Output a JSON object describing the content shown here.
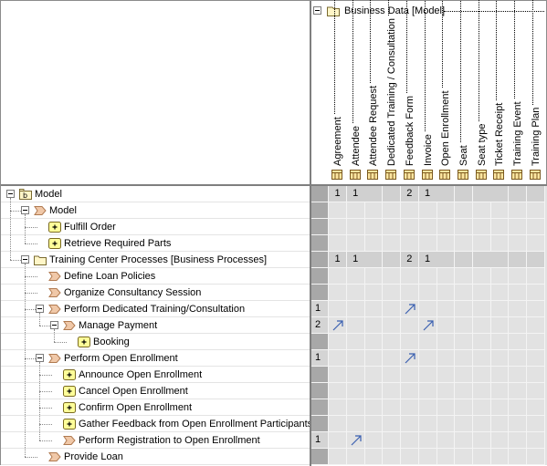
{
  "group_header": {
    "label": "Business Data [Model]"
  },
  "columns": [
    "Agreement",
    "Attendee",
    "Attendee Request",
    "Dedicated Training / Consultation",
    "Feedback Form",
    "Invoice",
    "Open Enrollment",
    "Seat",
    "Seat type",
    "Ticket Receipt",
    "Training Event",
    "Training Plan"
  ],
  "rows": [
    {
      "label": "Model",
      "level": 0,
      "icon": "package-icon",
      "expander": true,
      "rowsum": "",
      "cells": [
        "1",
        "1",
        "",
        "",
        "2",
        "1",
        "",
        "",
        "",
        "",
        "",
        ""
      ],
      "summary": true
    },
    {
      "label": "Model",
      "level": 1,
      "icon": "process-icon",
      "expander": true,
      "rowsum": "",
      "cells": [],
      "summary": false
    },
    {
      "label": "Fulfill Order",
      "level": 2,
      "icon": "activity-icon",
      "expander": false,
      "rowsum": "",
      "cells": [],
      "summary": false
    },
    {
      "label": "Retrieve Required Parts",
      "level": 2,
      "icon": "activity-icon",
      "expander": false,
      "rowsum": "",
      "cells": [],
      "summary": false
    },
    {
      "label": "Training Center Processes [Business Processes]",
      "level": 1,
      "icon": "folder-icon",
      "expander": true,
      "rowsum": "",
      "cells": [
        "1",
        "1",
        "",
        "",
        "2",
        "1",
        "",
        "",
        "",
        "",
        "",
        ""
      ],
      "summary": true
    },
    {
      "label": "Define Loan Policies",
      "level": 2,
      "icon": "process-icon",
      "expander": false,
      "rowsum": "",
      "cells": [],
      "summary": false
    },
    {
      "label": "Organize Consultancy Session",
      "level": 2,
      "icon": "process-icon",
      "expander": false,
      "rowsum": "",
      "cells": [],
      "summary": false
    },
    {
      "label": "Perform Dedicated Training/Consultation",
      "level": 2,
      "icon": "process-icon",
      "expander": true,
      "rowsum": "1",
      "arrows": [
        4
      ],
      "summary": false
    },
    {
      "label": "Manage Payment",
      "level": 3,
      "icon": "process-icon",
      "expander": true,
      "rowsum": "2",
      "arrows": [
        0,
        5
      ],
      "summary": false
    },
    {
      "label": "Booking",
      "level": 4,
      "icon": "activity-icon",
      "expander": false,
      "rowsum": "",
      "cells": [],
      "summary": false
    },
    {
      "label": "Perform Open Enrollment",
      "level": 2,
      "icon": "process-icon",
      "expander": true,
      "rowsum": "1",
      "arrows": [
        4
      ],
      "summary": false
    },
    {
      "label": "Announce Open Enrollment",
      "level": 3,
      "icon": "activity-icon",
      "expander": false,
      "rowsum": "",
      "cells": [],
      "summary": false
    },
    {
      "label": "Cancel Open Enrollment",
      "level": 3,
      "icon": "activity-icon",
      "expander": false,
      "rowsum": "",
      "cells": [],
      "summary": false
    },
    {
      "label": "Confirm Open Enrollment",
      "level": 3,
      "icon": "activity-icon",
      "expander": false,
      "rowsum": "",
      "cells": [],
      "summary": false
    },
    {
      "label": "Gather Feedback from Open Enrollment Participants",
      "level": 3,
      "icon": "activity-icon",
      "expander": false,
      "rowsum": "",
      "cells": [],
      "summary": false
    },
    {
      "label": "Perform Registration to Open Enrollment",
      "level": 3,
      "icon": "process-icon",
      "expander": false,
      "rowsum": "1",
      "arrows": [
        1
      ],
      "summary": false
    },
    {
      "label": "Provide Loan",
      "level": 2,
      "icon": "process-icon",
      "expander": false,
      "rowsum": "",
      "cells": [],
      "summary": false
    }
  ],
  "colors": {
    "grid_bg": "#e2e2e2",
    "rowsum_bg": "#a8a8a8",
    "arrow": "#3a5fb0",
    "process_icon": "#f0c8a8",
    "activity_icon": "#ffff99",
    "folder_icon": "#fff6c8"
  }
}
